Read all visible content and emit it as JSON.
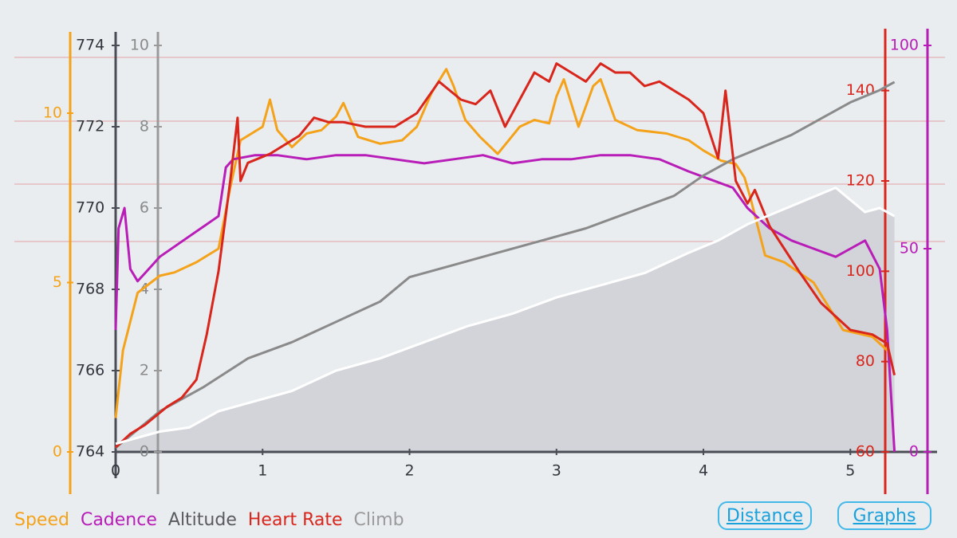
{
  "chart_data": {
    "type": "line",
    "x_axis": {
      "label": "",
      "range": [
        0,
        5.4
      ],
      "ticks": [
        0,
        1,
        2,
        3,
        4,
        5
      ]
    },
    "axes": {
      "speed": {
        "color": "#f5a21b",
        "range": [
          0,
          12
        ],
        "ticks": [
          0,
          5,
          10
        ]
      },
      "altitude": {
        "color": "#5a5a60",
        "range": [
          764,
          774
        ],
        "ticks": [
          764,
          766,
          768,
          770,
          772,
          774
        ]
      },
      "climb": {
        "color": "#8a8a8a",
        "range": [
          0,
          10
        ],
        "ticks": [
          0,
          2,
          4,
          6,
          8,
          10
        ]
      },
      "heartrate": {
        "color": "#d9261c",
        "range": [
          60,
          150
        ],
        "ticks": [
          60,
          80,
          100,
          120,
          140
        ]
      },
      "cadence": {
        "color": "#b81db8",
        "range": [
          0,
          100
        ],
        "ticks": [
          0,
          50,
          100
        ]
      }
    },
    "series": [
      {
        "name": "Speed",
        "axis": "speed",
        "color": "#f5a21b",
        "x": [
          0,
          0.05,
          0.15,
          0.3,
          0.4,
          0.55,
          0.7,
          0.78,
          0.85,
          1.0,
          1.05,
          1.1,
          1.2,
          1.3,
          1.4,
          1.5,
          1.55,
          1.65,
          1.8,
          1.95,
          2.05,
          2.15,
          2.25,
          2.3,
          2.38,
          2.48,
          2.6,
          2.75,
          2.85,
          2.95,
          3.0,
          3.05,
          3.15,
          3.25,
          3.3,
          3.4,
          3.55,
          3.75,
          3.9,
          4.0,
          4.12,
          4.22,
          4.28,
          4.32,
          4.42,
          4.55,
          4.75,
          4.95,
          5.15,
          5.25
        ],
        "y": [
          1,
          3,
          4.7,
          5.2,
          5.3,
          5.6,
          6.0,
          7.8,
          9.2,
          9.6,
          10.4,
          9.5,
          9.0,
          9.4,
          9.5,
          9.9,
          10.3,
          9.3,
          9.1,
          9.2,
          9.6,
          10.6,
          11.3,
          10.8,
          9.8,
          9.3,
          8.8,
          9.6,
          9.8,
          9.7,
          10.5,
          11.0,
          9.6,
          10.8,
          11.0,
          9.8,
          9.5,
          9.4,
          9.2,
          8.9,
          8.6,
          8.5,
          8.1,
          7.5,
          5.8,
          5.6,
          5.0,
          3.6,
          3.4,
          3.0
        ]
      },
      {
        "name": "Cadence",
        "axis": "cadence",
        "color": "#b81db8",
        "x": [
          0,
          0.02,
          0.06,
          0.1,
          0.15,
          0.2,
          0.3,
          0.5,
          0.7,
          0.75,
          0.8,
          0.95,
          1.1,
          1.3,
          1.5,
          1.7,
          1.9,
          2.1,
          2.3,
          2.5,
          2.7,
          2.9,
          3.1,
          3.3,
          3.5,
          3.7,
          3.9,
          4.05,
          4.2,
          4.3,
          4.45,
          4.6,
          4.75,
          4.9,
          5.0,
          5.1,
          5.2,
          5.25,
          5.3
        ],
        "y": [
          30,
          55,
          60,
          45,
          42,
          44,
          48,
          53,
          58,
          70,
          72,
          73,
          73,
          72,
          73,
          73,
          72,
          71,
          72,
          73,
          71,
          72,
          72,
          73,
          73,
          72,
          69,
          67,
          65,
          60,
          55,
          52,
          50,
          48,
          50,
          52,
          45,
          30,
          0
        ]
      },
      {
        "name": "Altitude",
        "axis": "altitude",
        "color": "#8a8a8a",
        "x": [
          0,
          0.3,
          0.6,
          0.9,
          1.2,
          1.5,
          1.8,
          2.0,
          2.3,
          2.6,
          2.9,
          3.2,
          3.5,
          3.8,
          4.0,
          4.2,
          4.4,
          4.6,
          4.8,
          5.0,
          5.2,
          5.3
        ],
        "y": [
          764.1,
          765.0,
          765.6,
          766.3,
          766.7,
          767.2,
          767.7,
          768.3,
          768.6,
          768.9,
          769.2,
          769.5,
          769.9,
          770.3,
          770.8,
          771.2,
          771.5,
          771.8,
          772.2,
          772.6,
          772.9,
          773.1
        ]
      },
      {
        "name": "Heart Rate",
        "axis": "heartrate",
        "color": "#d9261c",
        "x": [
          0,
          0.1,
          0.2,
          0.35,
          0.45,
          0.55,
          0.62,
          0.7,
          0.78,
          0.83,
          0.85,
          0.9,
          1.05,
          1.15,
          1.25,
          1.35,
          1.45,
          1.55,
          1.7,
          1.9,
          2.05,
          2.2,
          2.35,
          2.45,
          2.55,
          2.65,
          2.75,
          2.85,
          2.95,
          3.0,
          3.1,
          3.2,
          3.3,
          3.4,
          3.5,
          3.6,
          3.7,
          3.8,
          3.9,
          4.0,
          4.1,
          4.15,
          4.22,
          4.3,
          4.35,
          4.45,
          4.55,
          4.65,
          4.8,
          5.0,
          5.15,
          5.25,
          5.3
        ],
        "y": [
          61,
          64,
          66,
          70,
          72,
          76,
          86,
          100,
          120,
          134,
          120,
          124,
          126,
          128,
          130,
          134,
          133,
          133,
          132,
          132,
          135,
          142,
          138,
          137,
          140,
          132,
          138,
          144,
          142,
          146,
          144,
          142,
          146,
          144,
          144,
          141,
          142,
          140,
          138,
          135,
          125,
          140,
          120,
          115,
          118,
          110,
          105,
          100,
          93,
          87,
          86,
          84,
          77
        ]
      },
      {
        "name": "Climb",
        "axis": "climb",
        "color": "#ffffff",
        "fill": "#d2d4d9",
        "x": [
          0,
          0.3,
          0.5,
          0.7,
          0.9,
          1.2,
          1.5,
          1.8,
          2.1,
          2.4,
          2.7,
          3.0,
          3.3,
          3.6,
          3.9,
          4.1,
          4.3,
          4.5,
          4.7,
          4.9,
          5.1,
          5.2,
          5.3
        ],
        "y": [
          0.2,
          0.5,
          0.6,
          1.0,
          1.2,
          1.5,
          2.0,
          2.3,
          2.7,
          3.1,
          3.4,
          3.8,
          4.1,
          4.4,
          4.9,
          5.2,
          5.6,
          5.9,
          6.2,
          6.5,
          5.9,
          6.0,
          5.8
        ]
      }
    ]
  },
  "legend": {
    "items": [
      {
        "label": "Speed",
        "color": "#f5a21b"
      },
      {
        "label": "Cadence",
        "color": "#b81db8"
      },
      {
        "label": "Altitude",
        "color": "#5a5a60"
      },
      {
        "label": "Heart Rate",
        "color": "#d9261c"
      },
      {
        "label": "Climb",
        "color": "#9a9a9a"
      }
    ]
  },
  "buttons": {
    "distance": "Distance",
    "graphs": "Graphs"
  }
}
